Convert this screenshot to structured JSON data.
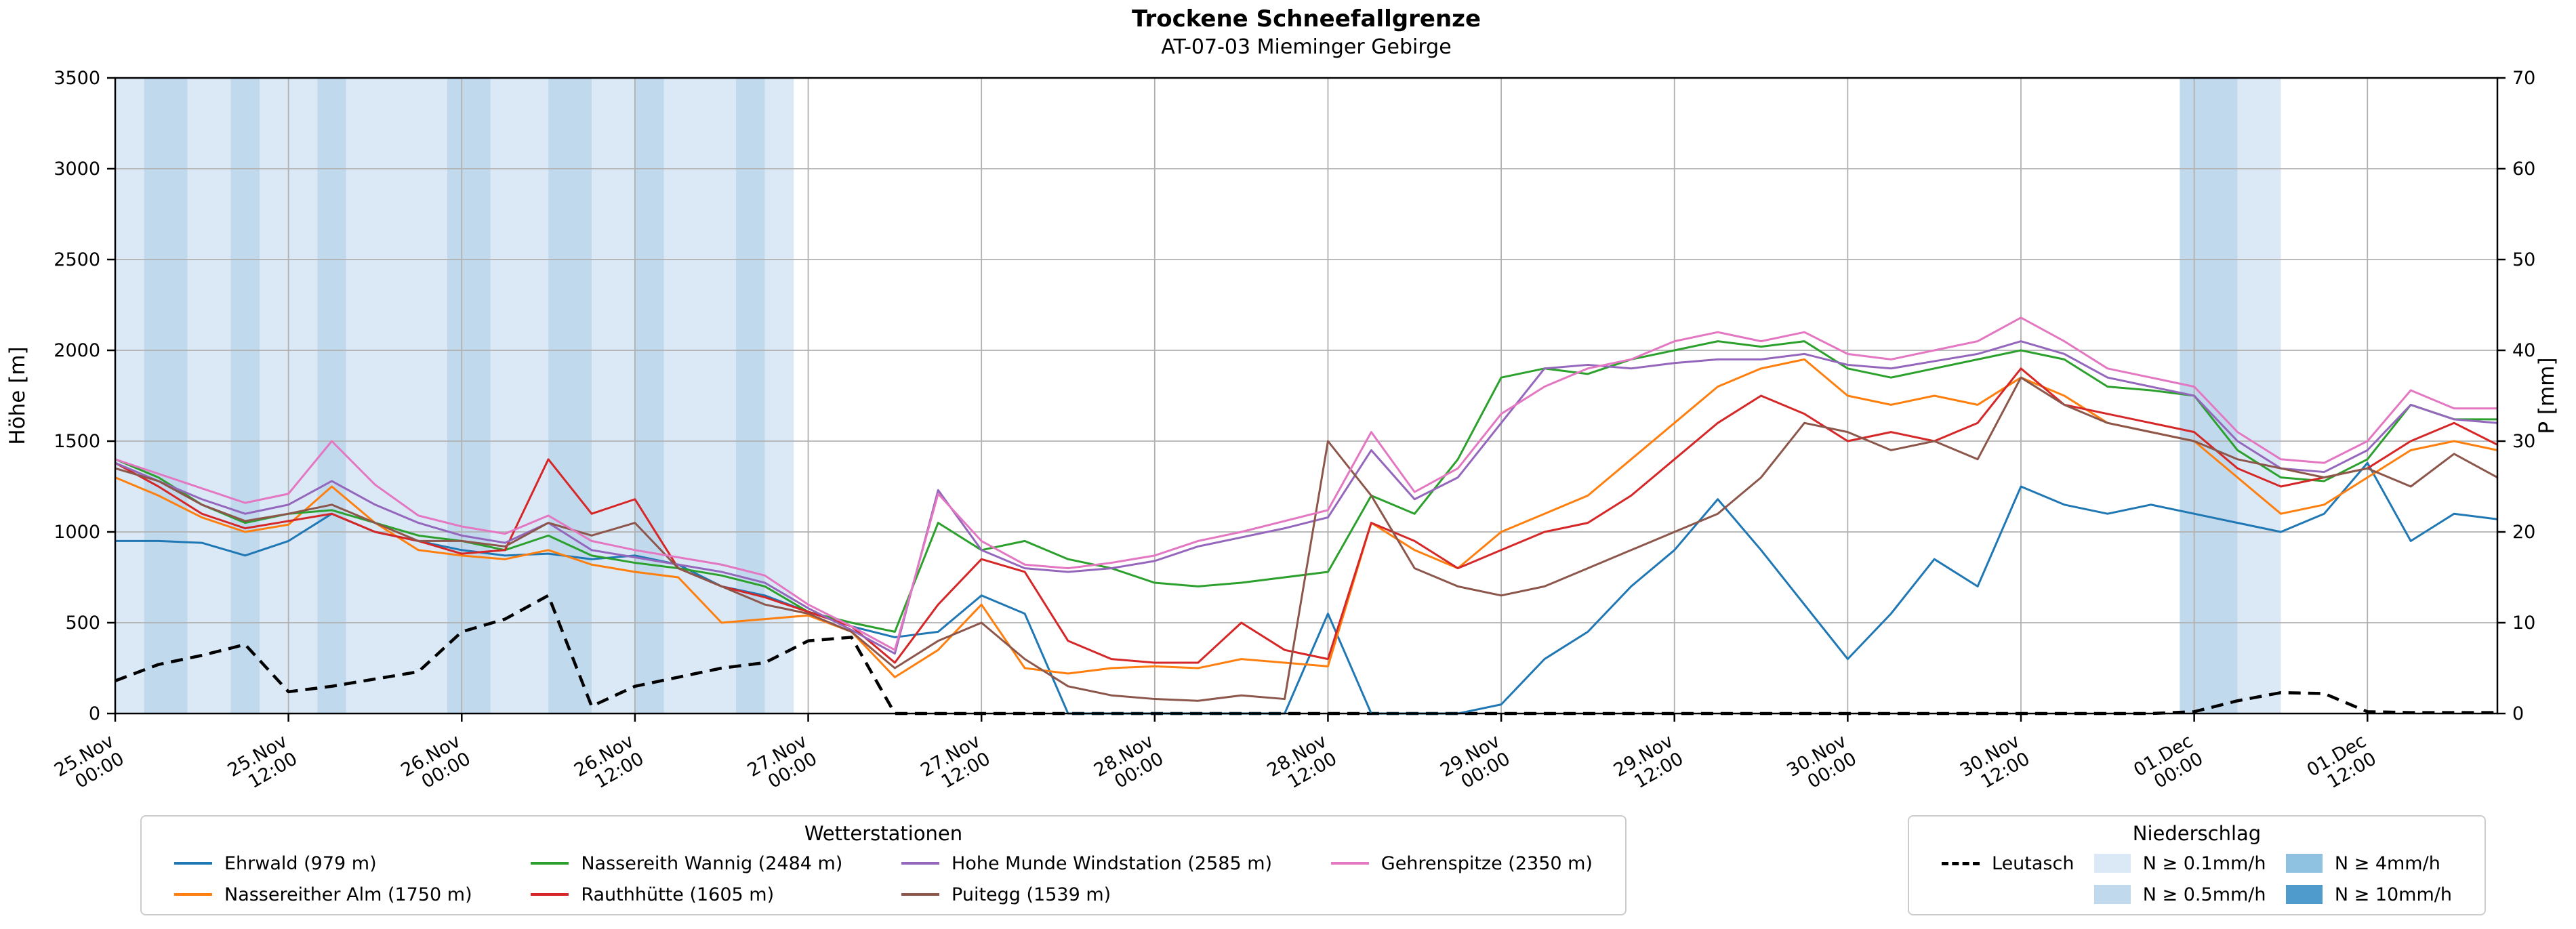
{
  "legends": {
    "stations_title": "Wetterstationen",
    "precip_title": "Niederschlag"
  },
  "chart_data": {
    "type": "line",
    "title": "Trockene Schneefallgrenze",
    "subtitle": "AT-07-03 Mieminger Gebirge",
    "ylabel_left": "Höhe [m]",
    "ylabel_right": "P [mm]",
    "x_unit": "hours since 25.Nov 00:00",
    "xlim": [
      0,
      165
    ],
    "ylim": [
      0,
      3500
    ],
    "ylim_right": [
      0,
      70
    ],
    "grid": true,
    "x_tick_hours": [
      0,
      12,
      24,
      36,
      48,
      60,
      72,
      84,
      96,
      108,
      120,
      132,
      144,
      156
    ],
    "x_tick_labels": [
      [
        "25.Nov",
        "00:00"
      ],
      [
        "25.Nov",
        "12:00"
      ],
      [
        "26.Nov",
        "00:00"
      ],
      [
        "26.Nov",
        "12:00"
      ],
      [
        "27.Nov",
        "00:00"
      ],
      [
        "27.Nov",
        "12:00"
      ],
      [
        "28.Nov",
        "00:00"
      ],
      [
        "28.Nov",
        "12:00"
      ],
      [
        "29.Nov",
        "00:00"
      ],
      [
        "29.Nov",
        "12:00"
      ],
      [
        "30.Nov",
        "00:00"
      ],
      [
        "30.Nov",
        "12:00"
      ],
      [
        "01.Dec",
        "00:00"
      ],
      [
        "01.Dec",
        "12:00"
      ]
    ],
    "y_ticks_left": [
      0,
      500,
      1000,
      1500,
      2000,
      2500,
      3000,
      3500
    ],
    "y_ticks_right": [
      0,
      10,
      20,
      30,
      40,
      50,
      60,
      70
    ],
    "hours": [
      0,
      3,
      6,
      9,
      12,
      15,
      18,
      21,
      24,
      27,
      30,
      33,
      36,
      39,
      42,
      45,
      48,
      51,
      54,
      57,
      60,
      63,
      66,
      69,
      72,
      75,
      78,
      81,
      84,
      87,
      90,
      93,
      96,
      99,
      102,
      105,
      108,
      111,
      114,
      117,
      120,
      123,
      126,
      129,
      132,
      135,
      138,
      141,
      144,
      147,
      150,
      153,
      156,
      159,
      162,
      165
    ],
    "series": [
      {
        "id": "ehrwald",
        "name": "Ehrwald (979 m)",
        "color": "#1f77b4",
        "values": [
          950,
          950,
          940,
          870,
          950,
          1100,
          1000,
          950,
          900,
          870,
          880,
          850,
          870,
          820,
          700,
          650,
          560,
          480,
          420,
          450,
          650,
          550,
          0,
          0,
          0,
          0,
          0,
          0,
          550,
          0,
          0,
          0,
          50,
          300,
          450,
          700,
          900,
          1180,
          900,
          600,
          300,
          550,
          850,
          700,
          1250,
          1150,
          1100,
          1150,
          1100,
          1050,
          1000,
          1100,
          1380,
          950,
          1100,
          1070
        ]
      },
      {
        "id": "nassereither-alm",
        "name": "Nassereither Alm (1750 m)",
        "color": "#ff7f0e",
        "values": [
          1300,
          1200,
          1080,
          1000,
          1040,
          1250,
          1050,
          900,
          870,
          850,
          900,
          820,
          780,
          750,
          500,
          520,
          540,
          450,
          200,
          350,
          600,
          250,
          220,
          250,
          260,
          250,
          300,
          280,
          260,
          1050,
          900,
          800,
          1000,
          1100,
          1200,
          1400,
          1600,
          1800,
          1900,
          1950,
          1750,
          1700,
          1750,
          1700,
          1850,
          1750,
          1600,
          1550,
          1500,
          1300,
          1100,
          1150,
          1300,
          1450,
          1500,
          1450
        ]
      },
      {
        "id": "nassereith-wannig",
        "name": "Nassereith Wannig (2484 m)",
        "color": "#2ca02c",
        "values": [
          1400,
          1300,
          1150,
          1050,
          1100,
          1120,
          1050,
          980,
          950,
          900,
          980,
          870,
          830,
          800,
          760,
          700,
          560,
          500,
          450,
          1050,
          900,
          950,
          850,
          800,
          720,
          700,
          720,
          750,
          780,
          1200,
          1100,
          1400,
          1850,
          1900,
          1870,
          1950,
          2000,
          2050,
          2020,
          2050,
          1900,
          1850,
          1900,
          1950,
          2000,
          1950,
          1800,
          1780,
          1750,
          1450,
          1300,
          1280,
          1400,
          1700,
          1620,
          1620
        ]
      },
      {
        "id": "rauthhuette",
        "name": "Rauthhütte (1605 m)",
        "color": "#d62728",
        "values": [
          1380,
          1250,
          1100,
          1020,
          1060,
          1100,
          1000,
          950,
          880,
          900,
          1400,
          1100,
          1180,
          800,
          700,
          640,
          560,
          480,
          280,
          600,
          850,
          780,
          400,
          300,
          280,
          280,
          500,
          350,
          300,
          1050,
          950,
          800,
          900,
          1000,
          1050,
          1200,
          1400,
          1600,
          1750,
          1650,
          1500,
          1550,
          1500,
          1600,
          1900,
          1700,
          1650,
          1600,
          1550,
          1350,
          1250,
          1300,
          1350,
          1500,
          1600,
          1480
        ]
      },
      {
        "id": "hohe-munde",
        "name": "Hohe Munde Windstation (2585 m)",
        "color": "#9467bd",
        "values": [
          1380,
          1280,
          1180,
          1100,
          1150,
          1280,
          1150,
          1050,
          980,
          940,
          1050,
          900,
          860,
          820,
          780,
          720,
          580,
          460,
          330,
          1230,
          900,
          800,
          780,
          800,
          840,
          920,
          970,
          1020,
          1080,
          1450,
          1180,
          1300,
          1600,
          1900,
          1920,
          1900,
          1930,
          1950,
          1950,
          1980,
          1920,
          1900,
          1940,
          1980,
          2050,
          1980,
          1850,
          1800,
          1750,
          1500,
          1350,
          1330,
          1450,
          1700,
          1620,
          1600
        ]
      },
      {
        "id": "puitegg",
        "name": "Puitegg (1539 m)",
        "color": "#8c564b",
        "values": [
          1350,
          1280,
          1150,
          1060,
          1100,
          1150,
          1050,
          950,
          950,
          920,
          1050,
          980,
          1050,
          800,
          700,
          600,
          550,
          450,
          250,
          400,
          500,
          300,
          150,
          100,
          80,
          70,
          100,
          80,
          1500,
          1200,
          800,
          700,
          650,
          700,
          800,
          900,
          1000,
          1100,
          1300,
          1600,
          1550,
          1450,
          1500,
          1400,
          1850,
          1700,
          1600,
          1550,
          1500,
          1400,
          1350,
          1300,
          1350,
          1250,
          1430,
          1300
        ]
      },
      {
        "id": "gehrenspitze",
        "name": "Gehrenspitze (2350 m)",
        "color": "#e377c2",
        "values": [
          1400,
          1320,
          1240,
          1160,
          1210,
          1500,
          1260,
          1090,
          1030,
          990,
          1090,
          950,
          900,
          860,
          820,
          760,
          600,
          480,
          350,
          1210,
          950,
          820,
          800,
          830,
          870,
          950,
          1000,
          1060,
          1120,
          1550,
          1220,
          1350,
          1650,
          1800,
          1900,
          1950,
          2050,
          2100,
          2050,
          2100,
          1980,
          1950,
          2000,
          2050,
          2180,
          2050,
          1900,
          1850,
          1800,
          1550,
          1400,
          1380,
          1500,
          1780,
          1680,
          1680
        ]
      }
    ],
    "leutasch": {
      "id": "leutasch",
      "name": "Leutasch",
      "color": "#000000",
      "dashed": true,
      "values": [
        180,
        270,
        320,
        380,
        120,
        150,
        190,
        230,
        450,
        520,
        650,
        40,
        150,
        200,
        250,
        280,
        400,
        420,
        0,
        0,
        0,
        0,
        0,
        0,
        0,
        0,
        0,
        0,
        0,
        0,
        0,
        0,
        0,
        0,
        0,
        0,
        0,
        0,
        0,
        0,
        0,
        0,
        0,
        0,
        0,
        0,
        0,
        0,
        10,
        70,
        115,
        110,
        10,
        5,
        5,
        5
      ]
    },
    "precip_levels": [
      {
        "label": "N ≥ 0.1mm/h",
        "color": "#dbe9f6"
      },
      {
        "label": "N ≥ 0.5mm/h",
        "color": "#c1d9ed"
      },
      {
        "label": "N ≥ 4mm/h",
        "color": "#8fc2e0"
      },
      {
        "label": "N ≥ 10mm/h",
        "color": "#4f9bcb"
      }
    ],
    "precip_bands": [
      {
        "start": 0,
        "end": 2,
        "level": 0
      },
      {
        "start": 2,
        "end": 5,
        "level": 1
      },
      {
        "start": 5,
        "end": 8,
        "level": 0
      },
      {
        "start": 8,
        "end": 10,
        "level": 1
      },
      {
        "start": 10,
        "end": 14,
        "level": 0
      },
      {
        "start": 14,
        "end": 16,
        "level": 1
      },
      {
        "start": 16,
        "end": 23,
        "level": 0
      },
      {
        "start": 23,
        "end": 26,
        "level": 1
      },
      {
        "start": 26,
        "end": 30,
        "level": 0
      },
      {
        "start": 30,
        "end": 33,
        "level": 1
      },
      {
        "start": 33,
        "end": 36,
        "level": 0
      },
      {
        "start": 36,
        "end": 38,
        "level": 1
      },
      {
        "start": 38,
        "end": 43,
        "level": 0
      },
      {
        "start": 43,
        "end": 45,
        "level": 1
      },
      {
        "start": 45,
        "end": 47,
        "level": 0
      },
      {
        "start": 143,
        "end": 147,
        "level": 1
      },
      {
        "start": 147,
        "end": 150,
        "level": 0
      }
    ]
  }
}
